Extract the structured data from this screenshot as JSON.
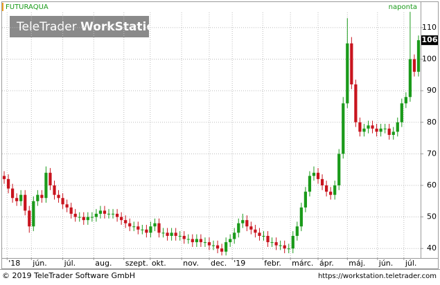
{
  "chart_data": {
    "type": "candlestick",
    "title": "FUTURAQUA",
    "subtitle": "naponta",
    "watermark": [
      "TeleTrader",
      "WorkStation"
    ],
    "footer_left": "© 2019 TeleTrader Software GmbH",
    "footer_right": "https://workstation.teletrader.com",
    "up_color": "#1a9a1a",
    "down_color": "#c8141e",
    "grid": true,
    "xlim": [
      -0.5,
      99.5
    ],
    "ylim": [
      37.2,
      114.8
    ],
    "yticks": [
      40,
      50,
      60,
      70,
      80,
      90,
      100,
      110
    ],
    "xticks": [
      {
        "value": 0.7,
        "label": "'18"
      },
      {
        "value": 6.5,
        "label": "jún."
      },
      {
        "value": 14,
        "label": "júl."
      },
      {
        "value": 21.4,
        "label": "aug."
      },
      {
        "value": 28.6,
        "label": "szept."
      },
      {
        "value": 34.9,
        "label": "okt."
      },
      {
        "value": 42.4,
        "label": "nov."
      },
      {
        "value": 49,
        "label": "dec."
      },
      {
        "value": 54.5,
        "label": "'19"
      },
      {
        "value": 61.8,
        "label": "febr."
      },
      {
        "value": 68.4,
        "label": "márc."
      },
      {
        "value": 75,
        "label": "ápr."
      },
      {
        "value": 82,
        "label": "máj."
      },
      {
        "value": 89.2,
        "label": "jún."
      },
      {
        "value": 95.5,
        "label": "júl."
      }
    ],
    "open": [
      63,
      62,
      59,
      56,
      55,
      57,
      52,
      47,
      55,
      57,
      56,
      64,
      60,
      57,
      56,
      54,
      53,
      51,
      50,
      50,
      49,
      50,
      50,
      51,
      52,
      51,
      51,
      51,
      50,
      49,
      48,
      47,
      47,
      46,
      46,
      45,
      47,
      48,
      45,
      45,
      44,
      45,
      44,
      44,
      43,
      43,
      42,
      43,
      42,
      42,
      41,
      41,
      40,
      39,
      42,
      43,
      45,
      48,
      49,
      47,
      46,
      45,
      44,
      44,
      42,
      42,
      41,
      41,
      40,
      40,
      44,
      47,
      53,
      58,
      63,
      64,
      62,
      60,
      58,
      57,
      60,
      70,
      86,
      105,
      92,
      80,
      77,
      78,
      79,
      78,
      77,
      78,
      78,
      76,
      77,
      80,
      86,
      88,
      100,
      96
    ],
    "high": [
      64.5,
      63.5,
      60.5,
      57.5,
      58.5,
      58.5,
      53.5,
      56.5,
      58.5,
      58.5,
      66,
      65.5,
      61.5,
      58.5,
      57.5,
      55.5,
      54.5,
      52.5,
      51.5,
      51.5,
      51.5,
      51.5,
      52.5,
      53.5,
      53.5,
      52.5,
      52.5,
      52.5,
      51.5,
      50.5,
      49.5,
      48.5,
      48.5,
      47.5,
      47.5,
      48.5,
      49.5,
      49.5,
      46.5,
      46.5,
      46.5,
      46.5,
      45.5,
      45.5,
      44.5,
      44.5,
      44.5,
      44.5,
      43.5,
      43.5,
      42.5,
      42.5,
      41.5,
      43.5,
      44.5,
      46.5,
      49.5,
      51,
      50.5,
      48.5,
      47.5,
      46.5,
      45.5,
      45.5,
      43.5,
      43.5,
      42.5,
      42.5,
      41.5,
      45.5,
      48.5,
      54.5,
      59.5,
      64.5,
      66,
      65.5,
      63.5,
      61.5,
      59.5,
      61.5,
      71.5,
      88,
      113,
      107,
      93.5,
      81.5,
      79.5,
      80.5,
      80.5,
      79.5,
      79.5,
      79.5,
      79.5,
      78.5,
      81.5,
      87.5,
      89.5,
      115,
      101.5,
      107.5
    ],
    "low": [
      60.5,
      57.5,
      54.5,
      53.5,
      53.5,
      50.5,
      45,
      45.5,
      53.5,
      54.5,
      54.5,
      58.5,
      55.5,
      54.5,
      52.5,
      51.5,
      49.5,
      48.5,
      48.5,
      47.5,
      47.5,
      48.5,
      48.5,
      49.5,
      49.5,
      49.5,
      49.5,
      48.5,
      47.5,
      46.5,
      45.5,
      45.5,
      44.5,
      44.5,
      43.5,
      43.5,
      45.5,
      43.5,
      43.5,
      42.5,
      42.5,
      42.5,
      42.5,
      41.5,
      41.5,
      40.5,
      40.5,
      40.5,
      40.5,
      39.5,
      39.5,
      38.5,
      37.8,
      37.8,
      40.5,
      41.5,
      43.5,
      46.5,
      45.5,
      44.5,
      43.5,
      42.5,
      42.5,
      40.5,
      40.5,
      39.5,
      39.5,
      38.5,
      38.5,
      38.5,
      42.5,
      45.5,
      51.5,
      56.5,
      61.5,
      60.5,
      58.5,
      56.5,
      55.5,
      55.5,
      58.5,
      68.5,
      84.5,
      90.5,
      78.5,
      75.5,
      75.5,
      76.5,
      76.5,
      75.5,
      75.5,
      76.5,
      74.5,
      74.5,
      75.5,
      78.5,
      84.5,
      86.5,
      94.5,
      94.5
    ],
    "close": [
      62,
      59,
      56,
      55,
      57,
      52,
      47,
      55,
      57,
      56,
      64,
      60,
      57,
      56,
      54,
      53,
      51,
      50,
      50,
      49,
      50,
      50,
      51,
      52,
      51,
      51,
      51,
      50,
      49,
      48,
      47,
      47,
      46,
      46,
      45,
      47,
      48,
      45,
      45,
      44,
      45,
      44,
      44,
      43,
      43,
      42,
      43,
      42,
      42,
      41,
      41,
      40,
      39,
      42,
      43,
      45,
      48,
      49,
      47,
      46,
      45,
      44,
      44,
      42,
      42,
      41,
      41,
      40,
      40,
      44,
      47,
      53,
      58,
      63,
      64,
      62,
      60,
      58,
      57,
      60,
      70,
      86,
      105,
      92,
      80,
      77,
      78,
      79,
      78,
      77,
      78,
      78,
      76,
      77,
      80,
      86,
      88,
      100,
      96,
      106
    ]
  }
}
